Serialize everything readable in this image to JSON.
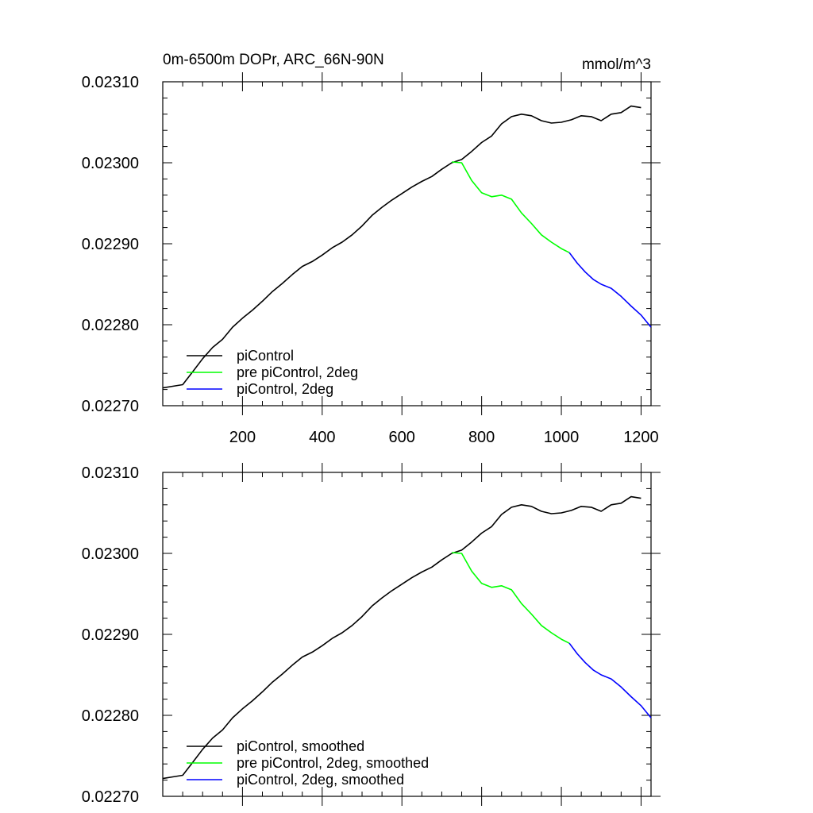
{
  "chart_data": [
    {
      "type": "line",
      "title_left": "0m-6500m DOPr, ARC_66N-90N",
      "title_right": "mmol/m^3",
      "xlim": [
        0,
        1225
      ],
      "ylim": [
        0.0227,
        0.0231
      ],
      "x_ticks": [
        200,
        400,
        600,
        800,
        1000,
        1200
      ],
      "x_tick_labels": [
        "200",
        "400",
        "600",
        "800",
        "1000",
        "1200"
      ],
      "y_ticks": [
        0.0227,
        0.0228,
        0.0229,
        0.023,
        0.0231
      ],
      "y_tick_labels": [
        "0.02270",
        "0.02280",
        "0.02290",
        "0.02300",
        "0.02310"
      ],
      "legend_position": "bottom-left",
      "series": [
        {
          "name": "piControl",
          "color": "#000000",
          "x": [
            0,
            25,
            50,
            75,
            100,
            125,
            150,
            175,
            200,
            225,
            250,
            275,
            300,
            325,
            350,
            375,
            400,
            425,
            450,
            475,
            500,
            525,
            550,
            575,
            600,
            625,
            650,
            675,
            700,
            725,
            750,
            775,
            800,
            825,
            850,
            875,
            900,
            925,
            950,
            975,
            1000,
            1025,
            1050,
            1075,
            1100,
            1125,
            1150,
            1175,
            1200
          ],
          "values": [
            0.022722,
            0.022724,
            0.022726,
            0.022742,
            0.022758,
            0.022772,
            0.022782,
            0.022797,
            0.022808,
            0.022818,
            0.022829,
            0.022841,
            0.022851,
            0.022862,
            0.022872,
            0.022878,
            0.022886,
            0.022895,
            0.022902,
            0.022911,
            0.022922,
            0.022935,
            0.022945,
            0.022954,
            0.022962,
            0.02297,
            0.022977,
            0.022983,
            0.022992,
            0.023,
            0.023004,
            0.023014,
            0.023025,
            0.023033,
            0.023048,
            0.023057,
            0.02306,
            0.023058,
            0.023052,
            0.023049,
            0.02305,
            0.023053,
            0.023058,
            0.023057,
            0.023052,
            0.02306,
            0.023062,
            0.02307,
            0.023068
          ]
        },
        {
          "name": "pre piControl, 2deg",
          "color": "#00ff00",
          "x": [
            725,
            750,
            775,
            800,
            825,
            850,
            875,
            900,
            925,
            950,
            975,
            1000,
            1020
          ],
          "values": [
            0.023001,
            0.023,
            0.022978,
            0.022963,
            0.022958,
            0.02296,
            0.022955,
            0.022938,
            0.022925,
            0.022911,
            0.022902,
            0.022894,
            0.022889
          ]
        },
        {
          "name": "piControl, 2deg",
          "color": "#0000ff",
          "x": [
            1020,
            1040,
            1060,
            1080,
            1100,
            1125,
            1150,
            1175,
            1200,
            1225
          ],
          "values": [
            0.022889,
            0.022876,
            0.022865,
            0.022856,
            0.02285,
            0.022845,
            0.022835,
            0.022823,
            0.022812,
            0.022797
          ]
        }
      ]
    },
    {
      "type": "line",
      "xlim": [
        0,
        1225
      ],
      "ylim": [
        0.0227,
        0.0231
      ],
      "x_ticks": [
        200,
        400,
        600,
        800,
        1000,
        1200
      ],
      "y_ticks": [
        0.0227,
        0.0228,
        0.0229,
        0.023,
        0.0231
      ],
      "y_tick_labels": [
        "0.02270",
        "0.02280",
        "0.02290",
        "0.02300",
        "0.02310"
      ],
      "legend_position": "bottom-left",
      "series": [
        {
          "name": "piControl, smoothed",
          "color": "#000000",
          "x": [
            0,
            25,
            50,
            75,
            100,
            125,
            150,
            175,
            200,
            225,
            250,
            275,
            300,
            325,
            350,
            375,
            400,
            425,
            450,
            475,
            500,
            525,
            550,
            575,
            600,
            625,
            650,
            675,
            700,
            725,
            750,
            775,
            800,
            825,
            850,
            875,
            900,
            925,
            950,
            975,
            1000,
            1025,
            1050,
            1075,
            1100,
            1125,
            1150,
            1175,
            1200
          ],
          "values": [
            0.022722,
            0.022724,
            0.022726,
            0.022742,
            0.022758,
            0.022772,
            0.022782,
            0.022797,
            0.022808,
            0.022818,
            0.022829,
            0.022841,
            0.022851,
            0.022862,
            0.022872,
            0.022878,
            0.022886,
            0.022895,
            0.022902,
            0.022911,
            0.022922,
            0.022935,
            0.022945,
            0.022954,
            0.022962,
            0.02297,
            0.022977,
            0.022983,
            0.022992,
            0.023,
            0.023004,
            0.023014,
            0.023025,
            0.023033,
            0.023048,
            0.023057,
            0.02306,
            0.023058,
            0.023052,
            0.023049,
            0.02305,
            0.023053,
            0.023058,
            0.023057,
            0.023052,
            0.02306,
            0.023062,
            0.02307,
            0.023068
          ]
        },
        {
          "name": "pre piControl, 2deg, smoothed",
          "color": "#00ff00",
          "x": [
            725,
            750,
            775,
            800,
            825,
            850,
            875,
            900,
            925,
            950,
            975,
            1000,
            1020
          ],
          "values": [
            0.023001,
            0.023,
            0.022978,
            0.022963,
            0.022958,
            0.02296,
            0.022955,
            0.022938,
            0.022925,
            0.022911,
            0.022902,
            0.022894,
            0.022889
          ]
        },
        {
          "name": "piControl, 2deg, smoothed",
          "color": "#0000ff",
          "x": [
            1020,
            1040,
            1060,
            1080,
            1100,
            1125,
            1150,
            1175,
            1200,
            1225
          ],
          "values": [
            0.022889,
            0.022876,
            0.022865,
            0.022856,
            0.02285,
            0.022845,
            0.022835,
            0.022823,
            0.022812,
            0.022797
          ]
        }
      ]
    }
  ]
}
